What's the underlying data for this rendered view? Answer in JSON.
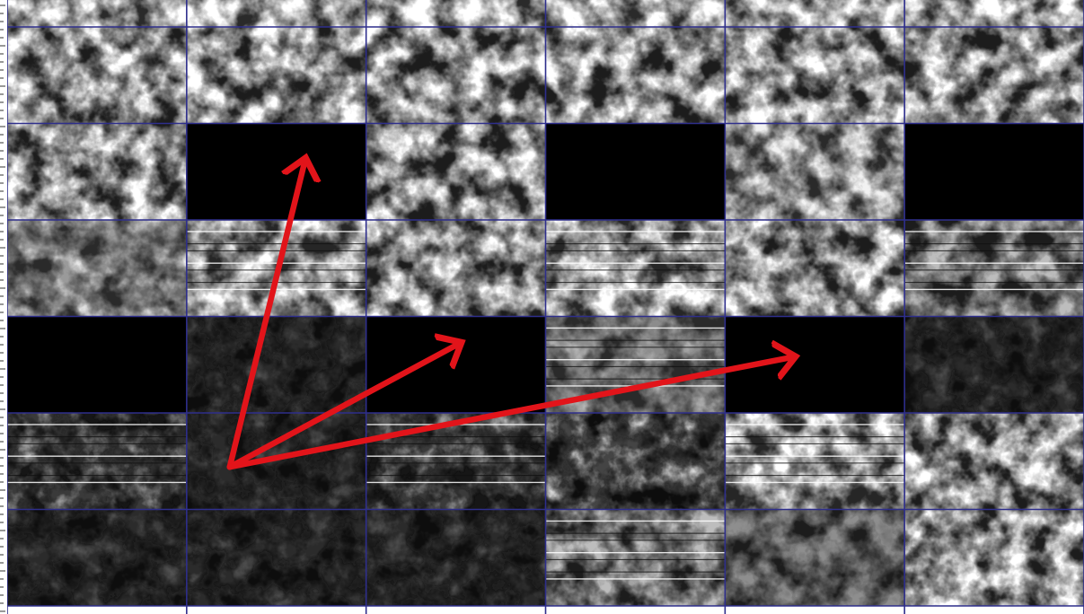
{
  "grid": {
    "rows": 6,
    "cols": 6,
    "line_color": "#2e2e8c",
    "tiles": [
      [
        "cloud-light",
        "cloud-light",
        "cloud-light",
        "cloud-light",
        "cloud-light",
        "cloud-light"
      ],
      [
        "cloud-light",
        "black",
        "cloud-light",
        "black",
        "cloud-mid",
        "black"
      ],
      [
        "cloud-gray",
        "streaked-light",
        "cloud-light",
        "streaked-light",
        "cloud-light",
        "streaked-mid"
      ],
      [
        "black",
        "dark-texture",
        "black",
        "streaked-gray",
        "black",
        "dark-texture"
      ],
      [
        "streaked-dark",
        "dark-texture",
        "streaked-dark",
        "cloud-dark",
        "streaked-light",
        "cloud-light"
      ],
      [
        "dark-texture",
        "dark-texture",
        "dark-texture",
        "streaked-mid",
        "gray-blob",
        "cloud-light"
      ]
    ],
    "black_tiles": [
      [
        1,
        1
      ],
      [
        1,
        3
      ],
      [
        1,
        5
      ],
      [
        3,
        0
      ],
      [
        3,
        2
      ],
      [
        3,
        4
      ]
    ]
  },
  "arrows": {
    "color": "#e2141a",
    "origin_tile": [
      4,
      1
    ],
    "targets": [
      [
        1,
        1
      ],
      [
        3,
        2
      ],
      [
        3,
        4
      ]
    ]
  }
}
